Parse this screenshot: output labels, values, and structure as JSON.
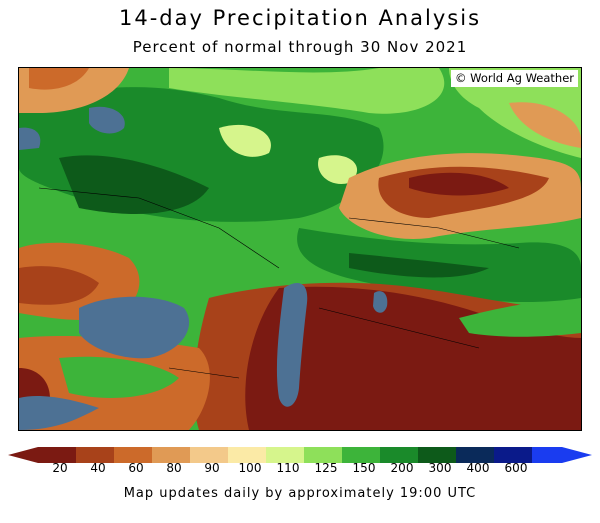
{
  "header": {
    "title": "14-day Precipitation Analysis",
    "subtitle": "Percent of normal through 30 Nov 2021"
  },
  "map": {
    "credit": "© World Ag Weather",
    "water_color": "#4d7194"
  },
  "legend": {
    "colors": [
      "#7b1a12",
      "#a8421a",
      "#cc6a2a",
      "#e09a55",
      "#f3c98a",
      "#fbeaa6",
      "#d6f58c",
      "#8ee05a",
      "#3db43a",
      "#1a8a2a",
      "#0d5a1a",
      "#0a2a5a",
      "#0a1a8a",
      "#1a3cf0"
    ],
    "ticks": [
      "20",
      "40",
      "60",
      "80",
      "90",
      "100",
      "110",
      "125",
      "150",
      "200",
      "300",
      "400",
      "600"
    ]
  },
  "footer": {
    "note": "Map updates daily by approximately 19:00 UTC"
  }
}
